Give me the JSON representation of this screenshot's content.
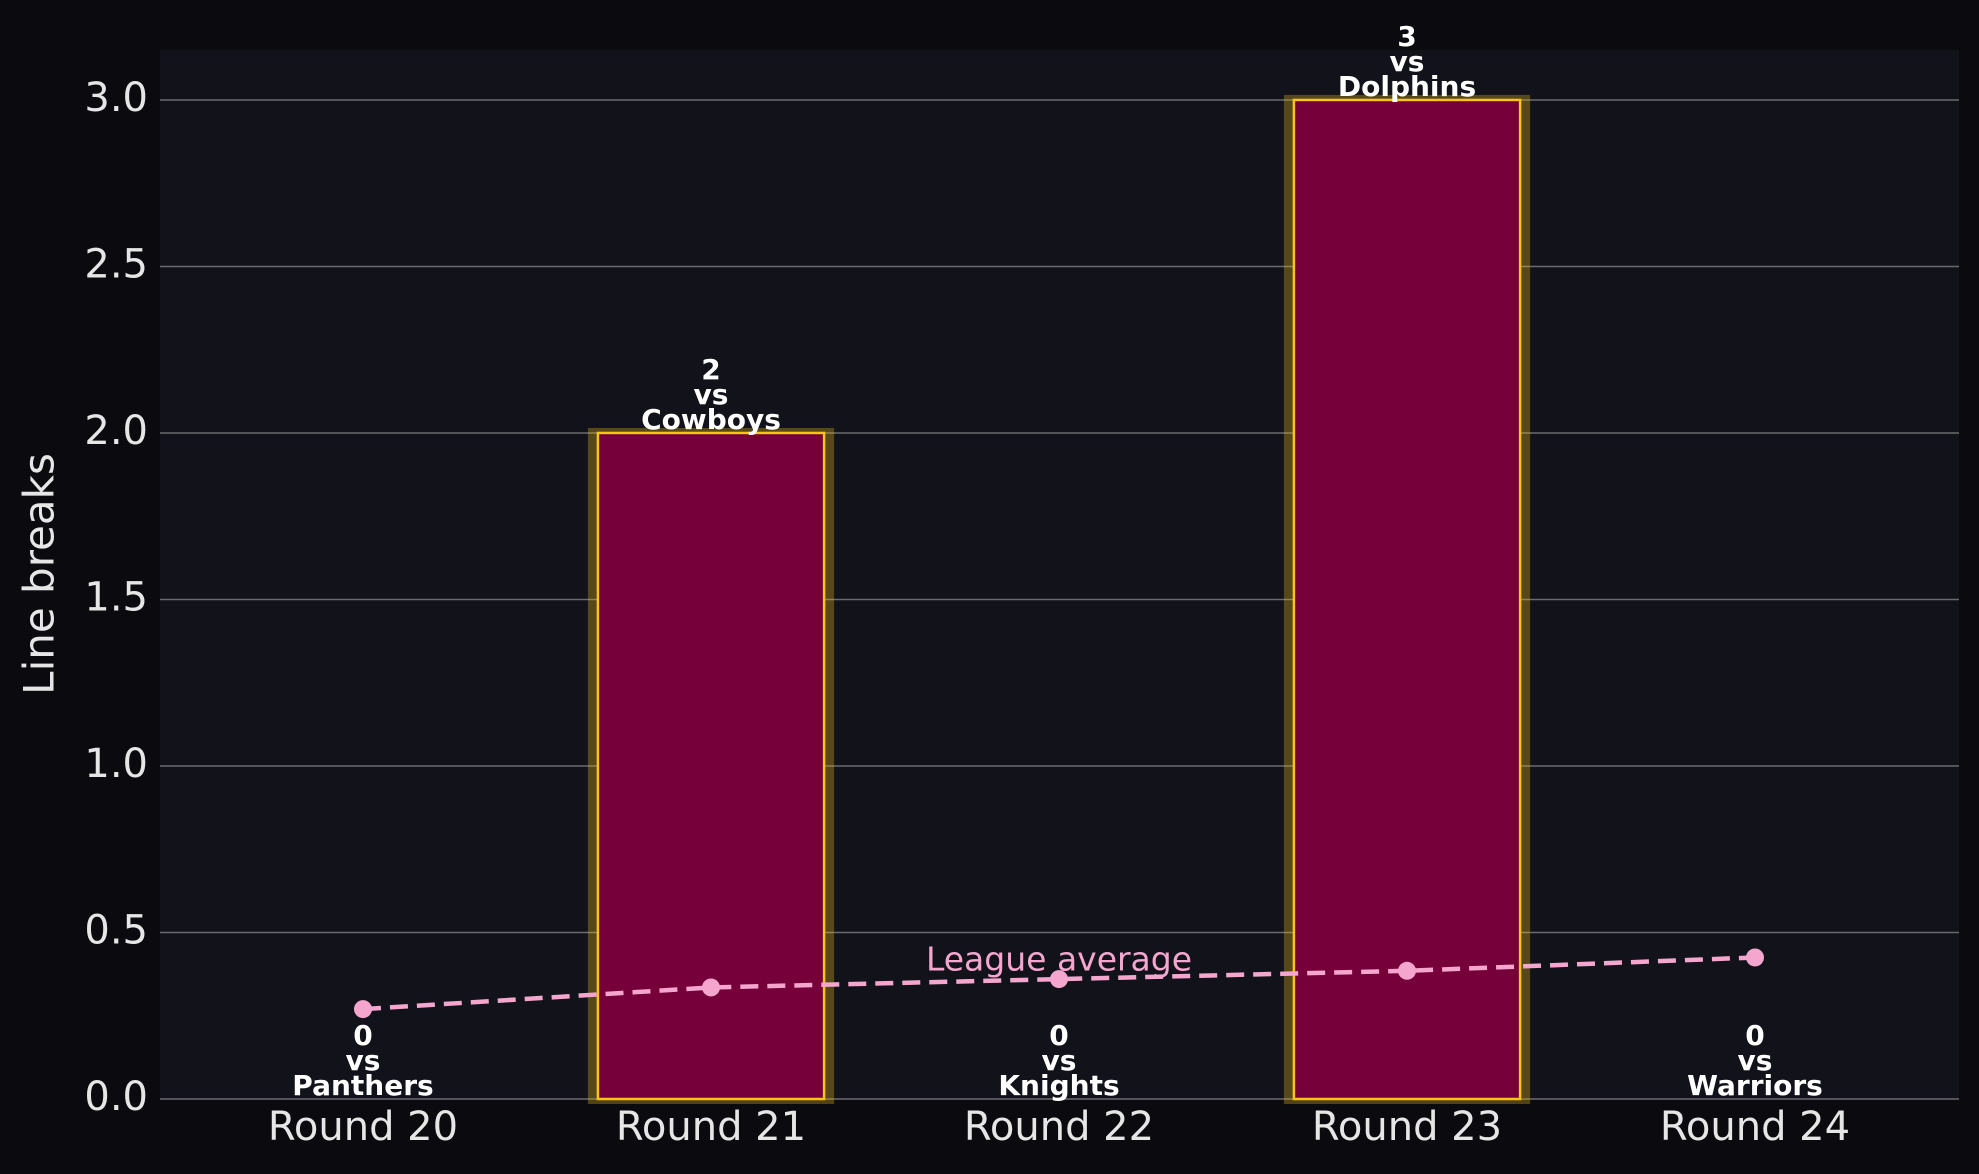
{
  "chart_data": {
    "type": "bar",
    "ylabel": "Line breaks",
    "categories": [
      "Round 20",
      "Round 21",
      "Round 22",
      "Round 23",
      "Round 24"
    ],
    "values": [
      0,
      2,
      0,
      3,
      0
    ],
    "opponents": [
      "Panthers",
      "Cowboys",
      "Knights",
      "Dolphins",
      "Warriors"
    ],
    "label_connector": "vs",
    "color": "#75003a",
    "edge_color": "#f5c518",
    "line_series": {
      "name": "League average",
      "color": "#f4a6cf",
      "values": [
        0.27,
        0.335,
        0.36,
        0.385,
        0.425
      ]
    },
    "ylim": [
      0,
      3.15
    ],
    "yticks": [
      {
        "value": 0,
        "label": "0.0"
      },
      0.5,
      {
        "value": 1,
        "label": "1.0"
      },
      1.5,
      {
        "value": 2,
        "label": "2.0"
      },
      2.5,
      {
        "value": 3,
        "label": "3.0"
      }
    ],
    "grid": true
  }
}
